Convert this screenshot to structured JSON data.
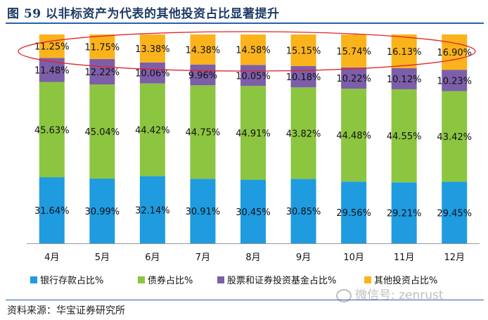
{
  "figure": {
    "title": "图 59   以非标资产为代表的其他投资占比显著提升",
    "source": "资料来源：华宝证券研究所",
    "watermark": "微信号: zenrust"
  },
  "chart_data": {
    "type": "bar",
    "stacked": true,
    "categories": [
      "4月",
      "5月",
      "6月",
      "7月",
      "8月",
      "9月",
      "10月",
      "11月",
      "12月"
    ],
    "ylim": [
      0,
      100
    ],
    "series": [
      {
        "name": "银行存款占比%",
        "color": "#1f9be0",
        "values": [
          31.64,
          30.99,
          32.14,
          30.91,
          30.45,
          30.85,
          29.56,
          29.21,
          29.45
        ],
        "labels": [
          "31.64%",
          "30.99%",
          "32.14%",
          "30.91%",
          "30.45%",
          "30.85%",
          "29.56%",
          "29.21%",
          "29.45%"
        ]
      },
      {
        "name": "债券占比%",
        "color": "#8cc540",
        "values": [
          45.63,
          45.04,
          44.42,
          44.75,
          44.91,
          43.82,
          44.48,
          44.55,
          43.42
        ],
        "labels": [
          "45.63%",
          "45.04%",
          "44.42%",
          "44.75%",
          "44.91%",
          "43.82%",
          "44.48%",
          "44.55%",
          "43.42%"
        ]
      },
      {
        "name": "股票和证券投资基金占比%",
        "color": "#7d5ea8",
        "values": [
          11.48,
          12.22,
          10.06,
          9.96,
          10.05,
          10.18,
          10.22,
          10.12,
          10.23
        ],
        "labels": [
          "11.48%",
          "12.22%",
          "10.06%",
          "9.96%",
          "10.05%",
          "10.18%",
          "10.22%",
          "10.12%",
          "10.23%"
        ]
      },
      {
        "name": "其他投资占比%",
        "color": "#fbb31c",
        "values": [
          11.25,
          11.75,
          13.38,
          14.38,
          14.58,
          15.15,
          15.74,
          16.13,
          16.9
        ],
        "labels": [
          "11.25%",
          "11.75%",
          "13.38%",
          "14.38%",
          "14.58%",
          "15.15%",
          "15.74%",
          "16.13%",
          "16.90%"
        ]
      }
    ],
    "legend_position": "bottom",
    "annotation": "red ellipse highlighting the 其他投资占比 row"
  }
}
